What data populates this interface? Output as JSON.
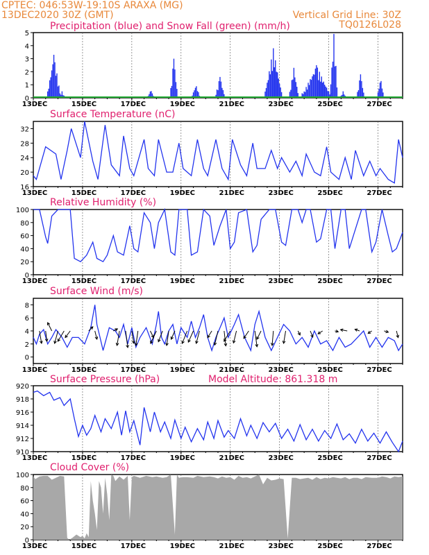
{
  "header": {
    "line1_left": "CPTEC:  046:53W-19:10S  ARAXA (MG)",
    "line2_left": "13DEC2020 30Z (GMT)",
    "line1_right": "Vertical Grid Line: 30Z",
    "line2_right": "TQ0126L028"
  },
  "colors": {
    "header": "#e8883a",
    "title": "#e0206e",
    "line": "#2233ee",
    "snow": "#22aa33",
    "cloud": "#a8a8a8"
  },
  "x_labels": [
    "13DEC",
    "15DEC",
    "17DEC",
    "19DEC",
    "21DEC",
    "23DEC",
    "25DEC",
    "27DEC"
  ],
  "chart_data": [
    {
      "id": "precip",
      "type": "bar",
      "title": "Precipitation (blue) and Snow Fall (green) (mm/h)",
      "ylim": [
        0,
        5
      ],
      "yticks": [
        0,
        1,
        2,
        3,
        4,
        5
      ],
      "x_range_hours": [
        0,
        360
      ],
      "precip_bursts": [
        {
          "h0": 14,
          "h1": 26,
          "peak": 3.3
        },
        {
          "h0": 26,
          "h1": 30,
          "peak": 0.5
        },
        {
          "h0": 112,
          "h1": 117,
          "peak": 0.6
        },
        {
          "h0": 134,
          "h1": 140,
          "peak": 3.0
        },
        {
          "h0": 155,
          "h1": 162,
          "peak": 1.0
        },
        {
          "h0": 178,
          "h1": 186,
          "peak": 1.6
        },
        {
          "h0": 226,
          "h1": 242,
          "peak": 3.8
        },
        {
          "h0": 250,
          "h1": 258,
          "peak": 2.3
        },
        {
          "h0": 262,
          "h1": 290,
          "peak": 2.5
        },
        {
          "h0": 290,
          "h1": 296,
          "peak": 4.9
        },
        {
          "h0": 300,
          "h1": 304,
          "peak": 0.5
        },
        {
          "h0": 316,
          "h1": 322,
          "peak": 1.8
        },
        {
          "h0": 336,
          "h1": 341,
          "peak": 1.5
        }
      ],
      "snow": 0
    },
    {
      "id": "temp",
      "type": "line",
      "title": "Surface Temperature (nC)",
      "ylim": [
        16,
        34
      ],
      "yticks": [
        16,
        20,
        24,
        28,
        32
      ],
      "x": [
        0,
        3,
        12,
        22,
        27,
        33,
        37,
        46,
        50,
        58,
        63,
        70,
        76,
        84,
        88,
        94,
        98,
        108,
        112,
        118,
        122,
        130,
        136,
        142,
        146,
        154,
        160,
        166,
        170,
        178,
        184,
        190,
        194,
        202,
        208,
        214,
        218,
        226,
        232,
        238,
        242,
        250,
        256,
        262,
        266,
        274,
        280,
        286,
        290,
        298,
        304,
        310,
        314,
        322,
        328,
        334,
        338,
        346,
        352,
        356,
        360
      ],
      "y": [
        19,
        18,
        27,
        25,
        18,
        26,
        32,
        24,
        34,
        23,
        18,
        33,
        22,
        19,
        30,
        21,
        19,
        29,
        21,
        19,
        29,
        20,
        20,
        28,
        21,
        19,
        29,
        21,
        19,
        29,
        21,
        18,
        29,
        22,
        19,
        28,
        21,
        21,
        26,
        21,
        24,
        20,
        23,
        19,
        25,
        20,
        19,
        27,
        20,
        18,
        24,
        18,
        26,
        19,
        23,
        19,
        21,
        18,
        17,
        29,
        24
      ]
    },
    {
      "id": "rh",
      "type": "line",
      "title": "Relative Humidity (%)",
      "ylim": [
        0,
        100
      ],
      "yticks": [
        0,
        20,
        40,
        60,
        80,
        100
      ],
      "x": [
        0,
        6,
        12,
        14,
        18,
        24,
        30,
        36,
        40,
        46,
        52,
        58,
        62,
        68,
        72,
        78,
        82,
        88,
        94,
        98,
        102,
        108,
        114,
        118,
        122,
        128,
        134,
        138,
        142,
        150,
        154,
        160,
        166,
        172,
        176,
        182,
        188,
        192,
        196,
        200,
        208,
        214,
        218,
        222,
        230,
        236,
        242,
        246,
        252,
        258,
        262,
        266,
        270,
        276,
        280,
        286,
        290,
        294,
        300,
        304,
        308,
        312,
        320,
        324,
        330,
        334,
        340,
        346,
        350,
        354,
        360
      ],
      "y": [
        100,
        100,
        58,
        48,
        90,
        100,
        100,
        100,
        25,
        20,
        30,
        50,
        25,
        20,
        30,
        60,
        35,
        30,
        75,
        40,
        35,
        95,
        80,
        40,
        80,
        100,
        35,
        30,
        100,
        100,
        30,
        35,
        100,
        90,
        45,
        75,
        100,
        40,
        50,
        95,
        100,
        35,
        45,
        85,
        100,
        100,
        50,
        45,
        100,
        100,
        80,
        100,
        100,
        50,
        55,
        100,
        100,
        40,
        100,
        100,
        40,
        60,
        100,
        100,
        35,
        50,
        100,
        60,
        35,
        40,
        65
      ]
    },
    {
      "id": "wind",
      "type": "line",
      "title": "Surface Wind (m/s)",
      "ylim": [
        -1,
        9
      ],
      "yticks": [
        0,
        2,
        4,
        6,
        8
      ],
      "x": [
        0,
        3,
        6,
        10,
        14,
        18,
        22,
        28,
        33,
        38,
        44,
        50,
        56,
        60,
        62,
        65,
        68,
        74,
        80,
        84,
        88,
        92,
        96,
        100,
        104,
        110,
        116,
        120,
        122,
        125,
        128,
        132,
        136,
        140,
        144,
        150,
        154,
        158,
        162,
        166,
        170,
        174,
        178,
        182,
        186,
        190,
        196,
        200,
        206,
        212,
        216,
        220,
        226,
        232,
        238,
        244,
        250,
        256,
        262,
        268,
        274,
        280,
        286,
        292,
        298,
        304,
        310,
        316,
        322,
        328,
        334,
        340,
        346,
        352,
        356,
        360
      ],
      "y": [
        3,
        2,
        3.5,
        4.2,
        2,
        3,
        4.2,
        3,
        1.5,
        3,
        3,
        2,
        4.5,
        8,
        5,
        3,
        1,
        4.5,
        4,
        3,
        5,
        2,
        4.5,
        1.5,
        3,
        4.5,
        2,
        5,
        7,
        3,
        2,
        4,
        5,
        2,
        4.5,
        3,
        5.5,
        3,
        4.5,
        6.5,
        3,
        1,
        3,
        4.5,
        6,
        3,
        5,
        6.5,
        3,
        1,
        5,
        7,
        3,
        1,
        3,
        5,
        4,
        2,
        3,
        1.5,
        4,
        2,
        2.5,
        1,
        3,
        1.5,
        2,
        3,
        4,
        1.5,
        3,
        1.5,
        3,
        2.5,
        1,
        2
      ],
      "arrow_hours": [
        6,
        12,
        18,
        24,
        30,
        36,
        54,
        60,
        78,
        84,
        90,
        96,
        102,
        114,
        120,
        126,
        132,
        138,
        150,
        156,
        162,
        174,
        180,
        186,
        192,
        198,
        210,
        216,
        222,
        234,
        246,
        258,
        270,
        282,
        294,
        306,
        318,
        330,
        342,
        354
      ],
      "arrows": [
        [
          0.5,
          -3
        ],
        [
          0.3,
          -2.5
        ],
        [
          -1,
          2
        ],
        [
          -0.8,
          -3
        ],
        [
          -1.5,
          -2.5
        ],
        [
          -1.2,
          -1.6
        ],
        [
          1,
          1
        ],
        [
          0.5,
          -2
        ],
        [
          1,
          0.5
        ],
        [
          -0.6,
          -3.5
        ],
        [
          0.5,
          -4
        ],
        [
          0.5,
          -3
        ],
        [
          -0.5,
          -3.5
        ],
        [
          0.8,
          -1.6
        ],
        [
          -1.4,
          -3
        ],
        [
          -1,
          -2.6
        ],
        [
          -0.5,
          -3.5
        ],
        [
          -0.9,
          -2
        ],
        [
          -1.2,
          -3
        ],
        [
          -1.2,
          -2.7
        ],
        [
          -0.8,
          -3
        ],
        [
          -1,
          -1.6
        ],
        [
          -0.8,
          -3.4
        ],
        [
          0.4,
          -3.6
        ],
        [
          -1.5,
          -2.5
        ],
        [
          -0.7,
          -2.9
        ],
        [
          -1.2,
          -1.8
        ],
        [
          0.5,
          -3.8
        ],
        [
          -1,
          -2
        ],
        [
          -0.3,
          -3.5
        ],
        [
          -0.5,
          -3
        ],
        [
          0.5,
          -1
        ],
        [
          0.6,
          -1.5
        ],
        [
          -1.1,
          -0.7
        ],
        [
          0.8,
          -0.2
        ],
        [
          -1.6,
          0.3
        ],
        [
          -1.1,
          0.4
        ],
        [
          -0.9,
          -0.6
        ],
        [
          1,
          -0.3
        ],
        [
          0.4,
          -1.6
        ]
      ]
    },
    {
      "id": "pressure",
      "type": "line",
      "title": "Surface Pressure (hPa)",
      "annotation": "Model Altitude: 861.318 m",
      "ylim": [
        910,
        920
      ],
      "yticks": [
        910,
        912,
        914,
        916,
        918,
        920
      ],
      "x": [
        0,
        4,
        10,
        16,
        20,
        26,
        30,
        36,
        40,
        44,
        48,
        52,
        56,
        60,
        66,
        70,
        76,
        82,
        86,
        90,
        94,
        98,
        104,
        108,
        114,
        118,
        124,
        128,
        134,
        138,
        144,
        148,
        154,
        160,
        166,
        170,
        176,
        180,
        186,
        190,
        196,
        202,
        208,
        212,
        218,
        224,
        230,
        236,
        242,
        248,
        254,
        260,
        266,
        272,
        278,
        284,
        290,
        296,
        302,
        308,
        314,
        320,
        326,
        332,
        338,
        344,
        350,
        356,
        360
      ],
      "y": [
        919,
        919.2,
        918.5,
        919,
        917.8,
        918.2,
        917,
        918,
        915,
        912.3,
        914,
        912.5,
        913.5,
        915.5,
        913,
        915,
        913.5,
        916,
        912.5,
        916.2,
        913,
        914.7,
        911,
        916.7,
        913,
        916,
        913,
        914.5,
        912,
        914.8,
        912,
        913.7,
        911.5,
        913.5,
        911.8,
        914.5,
        912,
        914.7,
        912.2,
        913.2,
        912,
        915,
        912.4,
        914,
        912,
        914.4,
        913,
        914.3,
        912,
        913.4,
        911.6,
        914.1,
        911.8,
        913.4,
        911.6,
        913.2,
        912,
        914.2,
        911.8,
        912.7,
        911.3,
        913.4,
        911.6,
        912.8,
        911.3,
        913,
        911.4,
        910,
        911.6
      ]
    },
    {
      "id": "cloud",
      "type": "area",
      "title": "Cloud Cover (%)",
      "ylim": [
        0,
        100
      ],
      "yticks": [
        0,
        20,
        40,
        60,
        80,
        100
      ],
      "x": [
        0,
        2,
        6,
        10,
        14,
        18,
        22,
        26,
        30,
        33,
        35,
        38,
        42,
        44,
        46,
        48,
        50,
        52,
        54,
        56,
        58,
        60,
        62,
        64,
        66,
        68,
        70,
        72,
        74,
        76,
        78,
        80,
        84,
        88,
        92,
        94,
        96,
        98,
        100,
        104,
        110,
        116,
        120,
        126,
        130,
        134,
        138,
        140,
        142,
        146,
        150,
        156,
        160,
        166,
        172,
        176,
        180,
        184,
        188,
        192,
        196,
        200,
        204,
        208,
        212,
        216,
        220,
        224,
        228,
        232,
        236,
        240,
        244,
        248,
        252,
        256,
        260,
        264,
        268,
        272,
        276,
        280,
        284,
        288,
        292,
        296,
        300,
        304,
        308,
        312,
        316,
        320,
        324,
        330,
        336,
        340,
        344,
        348,
        352,
        356,
        360
      ],
      "y": [
        97,
        93,
        97,
        98,
        98,
        92,
        95,
        98,
        97,
        3,
        0,
        3,
        8,
        6,
        4,
        6,
        2,
        10,
        4,
        90,
        60,
        40,
        15,
        90,
        80,
        40,
        95,
        70,
        30,
        100,
        98,
        90,
        97,
        92,
        98,
        30,
        96,
        98,
        97,
        95,
        98,
        96,
        97,
        95,
        96,
        100,
        8,
        100,
        95,
        96,
        96,
        95,
        98,
        96,
        97,
        96,
        94,
        97,
        95,
        96,
        92,
        98,
        95,
        96,
        94,
        97,
        100,
        85,
        95,
        91,
        92,
        94,
        93,
        2,
        95,
        95,
        93,
        94,
        95,
        92,
        96,
        93,
        95,
        94,
        96,
        95,
        94,
        96,
        93,
        95,
        95,
        93,
        96,
        95,
        95,
        97,
        96,
        94,
        97,
        96,
        97
      ]
    }
  ]
}
